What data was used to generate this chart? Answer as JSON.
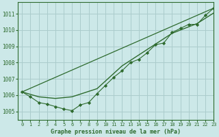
{
  "background_color": "#cce8e8",
  "grid_color": "#aacccc",
  "line_color": "#2d6a2d",
  "title": "Graphe pression niveau de la mer (hPa)",
  "xlim": [
    -0.5,
    23
  ],
  "ylim": [
    1004.5,
    1011.7
  ],
  "yticks": [
    1005,
    1006,
    1007,
    1008,
    1009,
    1010,
    1011
  ],
  "xticks": [
    0,
    1,
    2,
    3,
    4,
    5,
    6,
    7,
    8,
    9,
    10,
    11,
    12,
    13,
    14,
    15,
    16,
    17,
    18,
    19,
    20,
    21,
    22,
    23
  ],
  "series1_x": [
    0,
    1,
    2,
    3,
    4,
    5,
    6,
    7,
    8,
    9,
    10,
    11,
    12,
    13,
    14,
    15,
    16,
    17,
    18,
    19,
    20,
    21,
    22,
    23
  ],
  "series1_y": [
    1006.2,
    1005.9,
    1005.55,
    1005.45,
    1005.3,
    1005.15,
    1005.05,
    1005.4,
    1005.55,
    1006.1,
    1006.6,
    1007.1,
    1007.5,
    1008.0,
    1008.2,
    1008.6,
    1009.1,
    1009.2,
    1009.85,
    1010.1,
    1010.35,
    1010.35,
    1010.9,
    1011.35
  ],
  "series2_x": [
    0,
    2,
    4,
    6,
    9,
    12,
    15,
    18,
    21,
    23
  ],
  "series2_y": [
    1006.2,
    1005.9,
    1005.8,
    1005.9,
    1006.4,
    1007.8,
    1008.8,
    1009.8,
    1010.4,
    1011.05
  ],
  "series3_x": [
    0,
    23
  ],
  "series3_y": [
    1006.2,
    1011.35
  ]
}
